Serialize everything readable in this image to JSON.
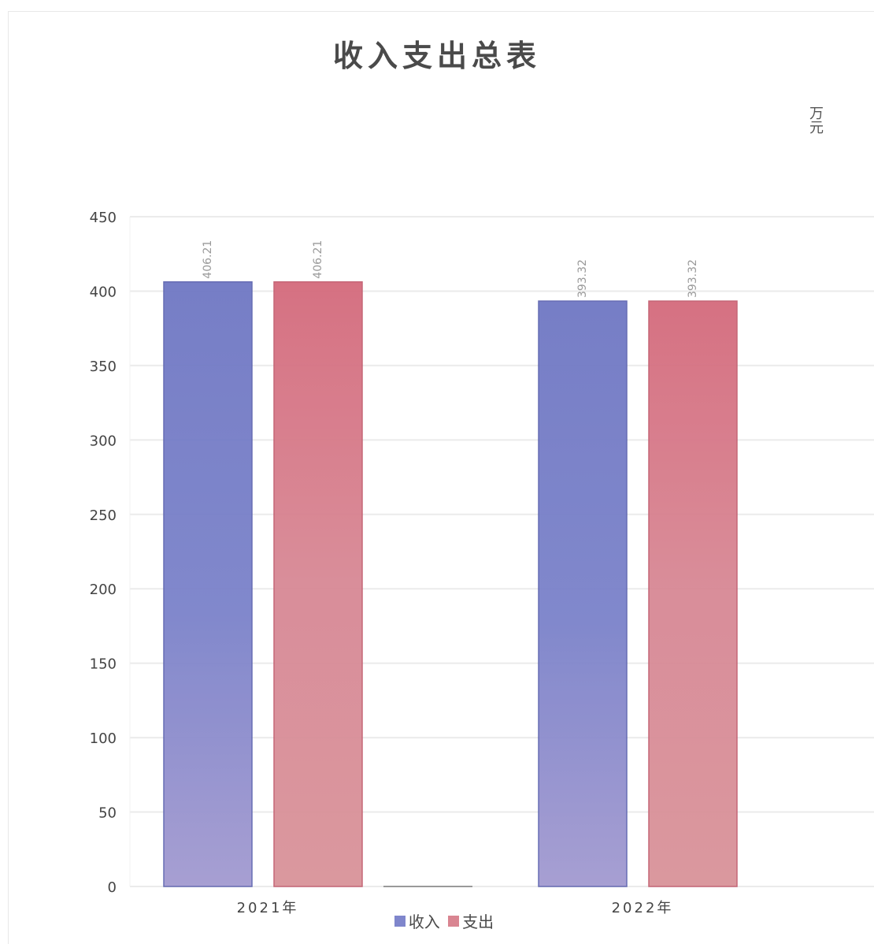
{
  "title": "收入支出总表",
  "unit_label": "万元",
  "colors": {
    "income": "#7f86cc",
    "expense": "#d98591",
    "grid": "#ebebeb",
    "axis_text": "#444444"
  },
  "chart_data": {
    "type": "bar",
    "title": "收入支出总表",
    "ylabel": "万元",
    "xlabel": "",
    "ylim": [
      0,
      450
    ],
    "yticks": [
      0,
      50,
      100,
      150,
      200,
      250,
      300,
      350,
      400,
      450
    ],
    "categories": [
      "2021年",
      "2022年"
    ],
    "series": [
      {
        "name": "收入",
        "values": [
          406.21,
          393.32
        ],
        "labels": [
          "406.21",
          "393.32"
        ]
      },
      {
        "name": "支出",
        "values": [
          406.21,
          393.32
        ],
        "labels": [
          "406.21",
          "393.32"
        ]
      }
    ],
    "grid": true,
    "legend": "bottom"
  }
}
